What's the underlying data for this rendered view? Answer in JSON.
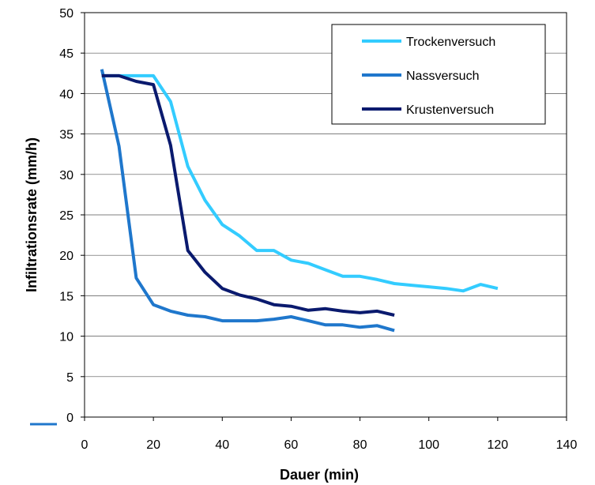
{
  "chart_data": {
    "type": "line",
    "title": "",
    "xlabel": "Dauer (min)",
    "ylabel": "Infiltrationsrate (mm/h)",
    "xlim": [
      0,
      140
    ],
    "ylim": [
      0,
      50
    ],
    "xticks": [
      "0",
      "20",
      "40",
      "60",
      "80",
      "100",
      "120",
      "140"
    ],
    "yticks": [
      "0",
      "5",
      "10",
      "15",
      "20",
      "25",
      "30",
      "35",
      "40",
      "45",
      "50"
    ],
    "grid": "horizontal",
    "legend_position": "top-right",
    "series": [
      {
        "name": "Trockenversuch",
        "color": "#33ccff",
        "x": [
          5,
          10,
          15,
          20,
          25,
          30,
          35,
          40,
          45,
          50,
          55,
          60,
          65,
          70,
          75,
          80,
          85,
          90,
          95,
          100,
          105,
          110,
          115,
          120
        ],
        "y": [
          42.2,
          42.2,
          42.2,
          42.2,
          39,
          31,
          26.8,
          23.8,
          22.4,
          20.6,
          20.6,
          19.4,
          19,
          18.2,
          17.4,
          17.4,
          17,
          16.5,
          16.3,
          16.1,
          15.9,
          15.6,
          16.4,
          15.9
        ]
      },
      {
        "name": "Nassversuch",
        "color": "#1f77cc",
        "x": [
          5,
          10,
          15,
          20,
          25,
          30,
          35,
          40,
          45,
          50,
          55,
          60,
          65,
          70,
          75,
          80,
          85,
          90
        ],
        "y": [
          43,
          33.5,
          17.2,
          13.9,
          13.1,
          12.6,
          12.4,
          11.9,
          11.9,
          11.9,
          12.1,
          12.4,
          11.9,
          11.4,
          11.4,
          11.1,
          11.3,
          10.7
        ]
      },
      {
        "name": "Krustenversuch",
        "color": "#0a1a6e",
        "x": [
          5,
          10,
          15,
          20,
          25,
          30,
          35,
          40,
          45,
          50,
          55,
          60,
          65,
          70,
          75,
          80,
          85,
          90
        ],
        "y": [
          42.2,
          42.2,
          41.5,
          41.1,
          33.6,
          20.6,
          17.9,
          15.9,
          15.1,
          14.6,
          13.9,
          13.7,
          13.2,
          13.4,
          13.1,
          12.9,
          13.1,
          12.6
        ]
      }
    ]
  }
}
